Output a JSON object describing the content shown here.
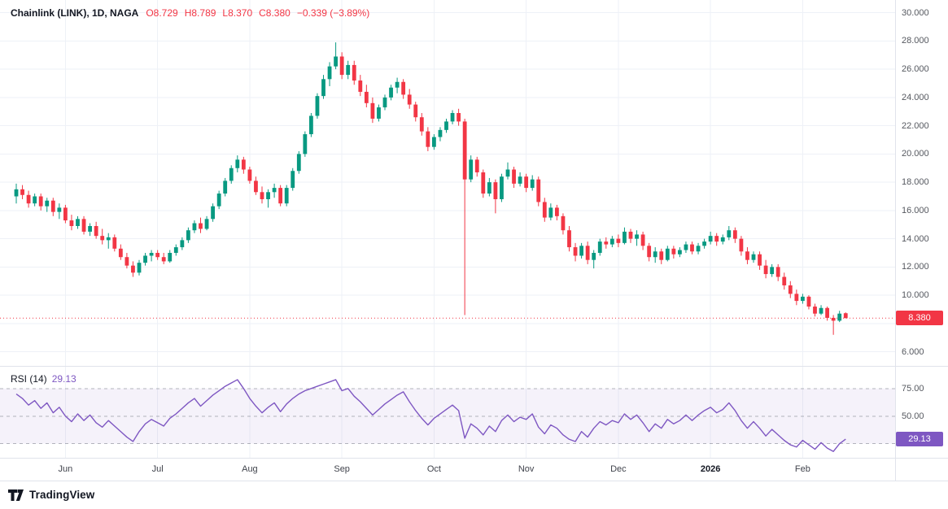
{
  "header": {
    "title": "Chainlink (LINK), 1D, NAGA",
    "ohlc_labels": [
      "O8.729",
      "H8.789",
      "L8.370",
      "C8.380",
      "−0.339 (−3.89%)"
    ]
  },
  "rsi_legend": {
    "label": "RSI (14)",
    "value": "29.13"
  },
  "badges": {
    "price": {
      "text": "8.380",
      "bg": "#f23645",
      "value": 8.38
    },
    "rsi": {
      "text": "29.13",
      "bg": "#7e57c2",
      "value": 29.13
    }
  },
  "footer": {
    "brand": "TradingView"
  },
  "colors": {
    "up": "#089981",
    "down": "#f23645",
    "rsi_line": "#7e57c2",
    "grid": "#eef1f7",
    "separator": "#e0e3eb",
    "level_line": "#787b86",
    "axis_text": "#55585f",
    "title_text": "#131722",
    "background": "#ffffff",
    "band_opacity": 0.08
  },
  "chart_data": [
    {
      "type": "candlestick",
      "name": "Chainlink (LINK), 1D, NAGA",
      "title": "Chainlink (LINK) daily candles, May 2025 – Feb 2026",
      "ohlc_last": {
        "open": 8.729,
        "high": 8.789,
        "low": 8.37,
        "close": 8.38,
        "change": -0.339,
        "change_pct": -3.89
      },
      "ylim": [
        5.0,
        30.9
      ],
      "last_price_line": 8.38,
      "grid_values": [
        6,
        8,
        10,
        12,
        14,
        16,
        18,
        20,
        22,
        24,
        26,
        28,
        30
      ],
      "y_axis_labels": [
        {
          "value": 30,
          "text": "30.000"
        },
        {
          "value": 28,
          "text": "28.000"
        },
        {
          "value": 26,
          "text": "26.000"
        },
        {
          "value": 24,
          "text": "24.000"
        },
        {
          "value": 22,
          "text": "22.000"
        },
        {
          "value": 20,
          "text": "20.000"
        },
        {
          "value": 18,
          "text": "18.000"
        },
        {
          "value": 16,
          "text": "16.000"
        },
        {
          "value": 14,
          "text": "14.000"
        },
        {
          "value": 12,
          "text": "12.000"
        },
        {
          "value": 10,
          "text": "10.000"
        },
        {
          "value": 6,
          "text": "6.000"
        }
      ],
      "x_axis_labels": [
        {
          "index": 8,
          "text": "Jun"
        },
        {
          "index": 23,
          "text": "Jul"
        },
        {
          "index": 38,
          "text": "Aug"
        },
        {
          "index": 53,
          "text": "Sep"
        },
        {
          "index": 68,
          "text": "Oct"
        },
        {
          "index": 83,
          "text": "Nov"
        },
        {
          "index": 98,
          "text": "Dec"
        },
        {
          "index": 113,
          "text": "2026",
          "emph": true
        },
        {
          "index": 128,
          "text": "Feb"
        }
      ],
      "candles": [
        [
          17.0,
          17.9,
          16.5,
          17.5
        ],
        [
          17.5,
          17.8,
          16.8,
          17.1
        ],
        [
          17.1,
          17.4,
          16.2,
          16.5
        ],
        [
          16.5,
          17.2,
          16.3,
          17.0
        ],
        [
          17.0,
          17.2,
          16.0,
          16.3
        ],
        [
          16.3,
          16.9,
          15.9,
          16.7
        ],
        [
          16.7,
          16.9,
          15.6,
          15.9
        ],
        [
          15.9,
          16.5,
          15.4,
          16.2
        ],
        [
          16.2,
          16.4,
          15.1,
          15.3
        ],
        [
          15.3,
          15.7,
          14.6,
          14.9
        ],
        [
          14.9,
          15.6,
          14.7,
          15.4
        ],
        [
          15.4,
          15.6,
          14.3,
          14.5
        ],
        [
          14.5,
          15.1,
          14.2,
          14.9
        ],
        [
          14.9,
          15.2,
          14.0,
          14.2
        ],
        [
          14.2,
          14.7,
          13.6,
          13.9
        ],
        [
          13.9,
          14.4,
          13.3,
          14.1
        ],
        [
          14.1,
          14.3,
          13.1,
          13.3
        ],
        [
          13.3,
          13.6,
          12.5,
          12.7
        ],
        [
          12.7,
          13.0,
          11.9,
          12.1
        ],
        [
          12.1,
          12.4,
          11.3,
          11.6
        ],
        [
          11.6,
          12.5,
          11.4,
          12.3
        ],
        [
          12.3,
          13.0,
          12.1,
          12.8
        ],
        [
          12.8,
          13.2,
          12.4,
          13.0
        ],
        [
          13.0,
          13.2,
          12.5,
          12.7
        ],
        [
          12.7,
          13.0,
          12.2,
          12.4
        ],
        [
          12.4,
          13.2,
          12.3,
          13.0
        ],
        [
          13.0,
          13.6,
          12.8,
          13.4
        ],
        [
          13.4,
          14.1,
          13.2,
          13.9
        ],
        [
          13.9,
          14.8,
          13.7,
          14.6
        ],
        [
          14.6,
          15.3,
          14.4,
          15.1
        ],
        [
          15.1,
          15.5,
          14.4,
          14.7
        ],
        [
          14.7,
          15.6,
          14.6,
          15.4
        ],
        [
          15.4,
          16.5,
          15.2,
          16.3
        ],
        [
          16.3,
          17.4,
          16.1,
          17.2
        ],
        [
          17.2,
          18.3,
          17.0,
          18.1
        ],
        [
          18.1,
          19.2,
          17.9,
          19.0
        ],
        [
          19.0,
          19.9,
          18.7,
          19.6
        ],
        [
          19.6,
          19.8,
          18.6,
          18.9
        ],
        [
          18.9,
          19.1,
          17.9,
          18.1
        ],
        [
          18.1,
          18.4,
          17.1,
          17.3
        ],
        [
          17.3,
          17.7,
          16.5,
          16.8
        ],
        [
          16.8,
          17.5,
          16.2,
          17.3
        ],
        [
          17.3,
          17.9,
          16.9,
          17.6
        ],
        [
          17.6,
          17.8,
          16.3,
          16.5
        ],
        [
          16.5,
          17.8,
          16.3,
          17.6
        ],
        [
          17.6,
          19.0,
          17.4,
          18.8
        ],
        [
          18.8,
          20.2,
          18.6,
          20.0
        ],
        [
          20.0,
          21.6,
          19.8,
          21.4
        ],
        [
          21.4,
          22.9,
          21.2,
          22.7
        ],
        [
          22.7,
          24.3,
          22.5,
          24.1
        ],
        [
          24.1,
          25.6,
          23.9,
          25.3
        ],
        [
          25.3,
          26.5,
          24.8,
          26.2
        ],
        [
          26.2,
          27.9,
          26.0,
          26.9
        ],
        [
          26.9,
          27.2,
          25.3,
          25.6
        ],
        [
          25.6,
          26.6,
          25.3,
          26.3
        ],
        [
          26.3,
          26.6,
          24.9,
          25.2
        ],
        [
          25.2,
          25.6,
          24.1,
          24.4
        ],
        [
          24.4,
          24.9,
          23.3,
          23.6
        ],
        [
          23.6,
          24.0,
          22.2,
          22.5
        ],
        [
          22.5,
          23.5,
          22.3,
          23.3
        ],
        [
          23.3,
          24.2,
          23.1,
          24.0
        ],
        [
          24.0,
          24.9,
          23.8,
          24.7
        ],
        [
          24.7,
          25.4,
          24.3,
          25.1
        ],
        [
          25.1,
          25.3,
          23.9,
          24.2
        ],
        [
          24.2,
          24.6,
          23.2,
          23.5
        ],
        [
          23.5,
          23.7,
          22.3,
          22.6
        ],
        [
          22.6,
          22.9,
          21.3,
          21.6
        ],
        [
          21.6,
          21.9,
          20.2,
          20.5
        ],
        [
          20.5,
          21.4,
          20.3,
          21.2
        ],
        [
          21.2,
          21.9,
          20.9,
          21.7
        ],
        [
          21.7,
          22.5,
          21.5,
          22.3
        ],
        [
          22.3,
          23.1,
          22.1,
          22.9
        ],
        [
          22.9,
          23.2,
          22.0,
          22.3
        ],
        [
          22.3,
          22.5,
          8.6,
          18.2
        ],
        [
          18.2,
          19.9,
          18.0,
          19.6
        ],
        [
          19.6,
          19.8,
          18.4,
          18.7
        ],
        [
          18.7,
          18.9,
          16.9,
          17.2
        ],
        [
          17.2,
          18.3,
          17.0,
          18.0
        ],
        [
          18.0,
          18.2,
          15.8,
          16.8
        ],
        [
          16.8,
          18.6,
          16.6,
          18.4
        ],
        [
          18.4,
          19.4,
          18.2,
          18.9
        ],
        [
          18.9,
          19.1,
          17.6,
          17.9
        ],
        [
          17.9,
          18.7,
          17.7,
          18.4
        ],
        [
          18.4,
          18.6,
          17.3,
          17.6
        ],
        [
          17.6,
          18.5,
          17.4,
          18.2
        ],
        [
          18.2,
          18.4,
          16.3,
          16.6
        ],
        [
          16.6,
          16.9,
          15.2,
          15.5
        ],
        [
          15.5,
          16.5,
          15.3,
          16.2
        ],
        [
          16.2,
          16.4,
          15.3,
          15.6
        ],
        [
          15.6,
          15.8,
          14.3,
          14.6
        ],
        [
          14.6,
          14.9,
          13.1,
          13.4
        ],
        [
          13.4,
          13.7,
          12.4,
          12.8
        ],
        [
          12.8,
          13.7,
          12.6,
          13.5
        ],
        [
          13.5,
          13.8,
          12.2,
          12.5
        ],
        [
          12.5,
          13.2,
          11.9,
          13.0
        ],
        [
          13.0,
          14.0,
          12.8,
          13.8
        ],
        [
          13.8,
          14.1,
          13.3,
          13.6
        ],
        [
          13.6,
          14.2,
          13.4,
          14.0
        ],
        [
          14.0,
          14.3,
          13.4,
          13.7
        ],
        [
          13.7,
          14.8,
          13.6,
          14.5
        ],
        [
          14.5,
          14.7,
          13.7,
          14.0
        ],
        [
          14.0,
          14.6,
          13.5,
          14.3
        ],
        [
          14.3,
          14.5,
          13.2,
          13.5
        ],
        [
          13.5,
          13.7,
          12.4,
          12.7
        ],
        [
          12.7,
          13.4,
          12.3,
          13.1
        ],
        [
          13.1,
          13.3,
          12.2,
          12.5
        ],
        [
          12.5,
          13.5,
          12.4,
          13.3
        ],
        [
          13.3,
          13.5,
          12.6,
          12.9
        ],
        [
          12.9,
          13.4,
          12.7,
          13.2
        ],
        [
          13.2,
          13.8,
          13.0,
          13.6
        ],
        [
          13.6,
          13.8,
          12.9,
          13.1
        ],
        [
          13.1,
          13.7,
          12.9,
          13.5
        ],
        [
          13.5,
          14.0,
          13.3,
          13.8
        ],
        [
          13.8,
          14.5,
          13.6,
          14.2
        ],
        [
          14.2,
          14.4,
          13.5,
          13.8
        ],
        [
          13.8,
          14.3,
          13.6,
          14.1
        ],
        [
          14.1,
          14.9,
          13.9,
          14.6
        ],
        [
          14.6,
          14.8,
          13.7,
          14.0
        ],
        [
          14.0,
          14.2,
          12.8,
          13.1
        ],
        [
          13.1,
          13.4,
          12.2,
          12.5
        ],
        [
          12.5,
          13.1,
          12.3,
          12.9
        ],
        [
          12.9,
          13.1,
          11.8,
          12.1
        ],
        [
          12.1,
          12.5,
          11.2,
          11.5
        ],
        [
          11.5,
          12.2,
          11.3,
          12.0
        ],
        [
          12.0,
          12.2,
          11.0,
          11.3
        ],
        [
          11.3,
          11.6,
          10.4,
          10.7
        ],
        [
          10.7,
          11.0,
          9.8,
          10.1
        ],
        [
          10.1,
          10.4,
          9.3,
          9.6
        ],
        [
          9.6,
          10.1,
          9.4,
          9.9
        ],
        [
          9.9,
          10.0,
          9.0,
          9.2
        ],
        [
          9.2,
          9.4,
          8.5,
          8.7
        ],
        [
          8.7,
          9.3,
          8.6,
          9.1
        ],
        [
          9.1,
          9.2,
          8.2,
          8.4
        ],
        [
          8.4,
          8.6,
          7.2,
          8.2
        ],
        [
          8.2,
          8.9,
          8.1,
          8.7
        ],
        [
          8.729,
          8.789,
          8.37,
          8.38
        ]
      ]
    },
    {
      "type": "line",
      "name": "RSI (14)",
      "last_value": 29.13,
      "ylim": [
        13,
        94
      ],
      "levels": [
        75,
        50,
        25
      ],
      "band": [
        25,
        75
      ],
      "y_axis_labels": [
        {
          "value": 75,
          "text": "75.00"
        },
        {
          "value": 50,
          "text": "50.00"
        }
      ],
      "values": [
        70,
        66,
        60,
        64,
        57,
        62,
        53,
        58,
        50,
        45,
        52,
        46,
        51,
        44,
        40,
        46,
        41,
        36,
        31,
        27,
        36,
        43,
        47,
        44,
        41,
        48,
        52,
        57,
        62,
        66,
        59,
        64,
        69,
        73,
        77,
        80,
        83,
        75,
        66,
        59,
        53,
        58,
        62,
        54,
        61,
        66,
        70,
        73,
        75,
        77,
        79,
        81,
        83,
        73,
        75,
        68,
        63,
        57,
        51,
        56,
        61,
        65,
        69,
        72,
        63,
        55,
        48,
        42,
        48,
        52,
        56,
        60,
        55,
        30,
        43,
        39,
        33,
        41,
        36,
        46,
        51,
        45,
        49,
        47,
        52,
        40,
        34,
        42,
        39,
        33,
        29,
        27,
        36,
        31,
        39,
        45,
        42,
        46,
        44,
        52,
        47,
        51,
        44,
        36,
        43,
        39,
        47,
        43,
        46,
        51,
        46,
        51,
        55,
        58,
        53,
        56,
        62,
        55,
        46,
        39,
        45,
        39,
        32,
        38,
        33,
        28,
        24,
        22,
        28,
        24,
        20,
        26,
        21,
        18,
        25,
        29.13
      ]
    }
  ]
}
